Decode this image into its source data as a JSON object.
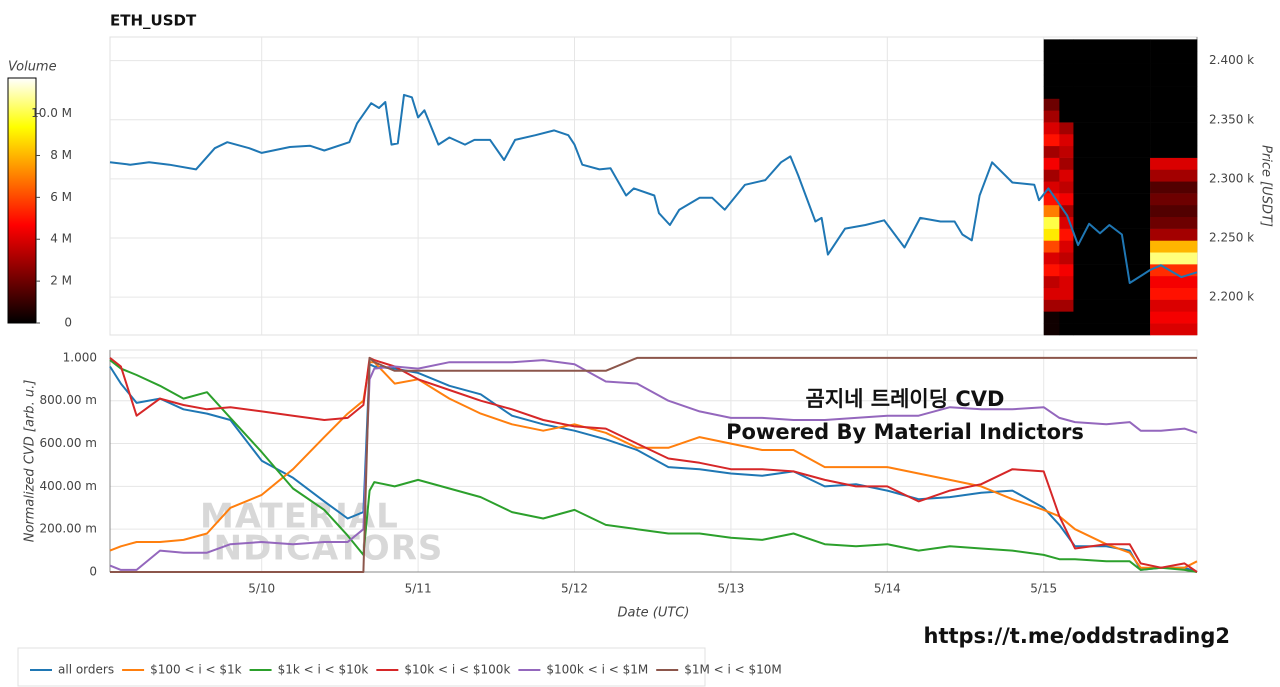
{
  "footer": "https://t.me/oddstrading2",
  "chart_data": [
    {
      "type": "line",
      "title": "ETH_USDT",
      "ylabel": "Price [USDT]",
      "y_axis_side": "right",
      "color": "#1f77b4",
      "grid": true,
      "xlim": [
        9.03,
        15.98
      ],
      "xticks": [
        10,
        11,
        12,
        13,
        14,
        15
      ],
      "ylim": [
        2168,
        2420
      ],
      "yticks": [
        {
          "value": 2200,
          "label": "2.200 k"
        },
        {
          "value": 2250,
          "label": "2.250 k"
        },
        {
          "value": 2300,
          "label": "2.300 k"
        },
        {
          "value": 2350,
          "label": "2.350 k"
        },
        {
          "value": 2400,
          "label": "2.400 k"
        }
      ],
      "x": [
        9.03,
        9.16,
        9.28,
        9.41,
        9.58,
        9.7,
        9.78,
        9.92,
        10.0,
        10.18,
        10.31,
        10.4,
        10.56,
        10.61,
        10.7,
        10.75,
        10.79,
        10.83,
        10.87,
        10.91,
        10.96,
        11.0,
        11.04,
        11.13,
        11.2,
        11.3,
        11.36,
        11.46,
        11.55,
        11.62,
        11.75,
        11.87,
        11.96,
        12.0,
        12.05,
        12.16,
        12.23,
        12.33,
        12.38,
        12.51,
        12.54,
        12.61,
        12.67,
        12.8,
        12.88,
        12.96,
        13.09,
        13.22,
        13.32,
        13.38,
        13.43,
        13.54,
        13.58,
        13.62,
        13.73,
        13.86,
        13.98,
        14.11,
        14.21,
        14.34,
        14.43,
        14.48,
        14.54,
        14.59,
        14.67,
        14.8,
        14.94,
        14.97,
        15.03,
        15.15,
        15.22,
        15.29,
        15.36,
        15.42,
        15.5,
        15.55,
        15.68,
        15.75,
        15.88,
        15.98
      ],
      "values": [
        2314,
        2312,
        2314,
        2312,
        2308,
        2326,
        2331,
        2326,
        2322,
        2327,
        2328,
        2324,
        2331,
        2347,
        2364,
        2360,
        2365,
        2329,
        2330,
        2371,
        2369,
        2352,
        2358,
        2329,
        2335,
        2329,
        2333,
        2333,
        2316,
        2333,
        2337,
        2341,
        2337,
        2329,
        2312,
        2308,
        2309,
        2286,
        2292,
        2286,
        2271,
        2261,
        2274,
        2284,
        2284,
        2274,
        2295,
        2299,
        2314,
        2319,
        2303,
        2264,
        2267,
        2236,
        2258,
        2261,
        2265,
        2242,
        2267,
        2264,
        2264,
        2253,
        2248,
        2286,
        2314,
        2297,
        2295,
        2282,
        2292,
        2269,
        2244,
        2262,
        2254,
        2261,
        2253,
        2212,
        2223,
        2227,
        2217,
        2221
      ],
      "heatmap": {
        "x_edges": [
          15.0,
          15.1,
          15.19,
          15.68,
          15.98
        ],
        "y_edges": [
          2168,
          2178,
          2188,
          2198,
          2208,
          2218,
          2228,
          2238,
          2248,
          2258,
          2268,
          2278,
          2288,
          2298,
          2308,
          2318,
          2328,
          2338,
          2348,
          2358,
          2368,
          2378,
          2388,
          2398,
          2408,
          2418
        ],
        "values": [
          [
            300000,
            300000,
            3000000,
            4000000,
            3500000,
            5000000,
            4000000,
            6000000,
            9000000,
            10000000,
            7000000,
            5000000,
            4000000,
            3000000,
            4500000,
            3000000,
            5000000,
            4000000,
            3000000,
            2000000,
            0,
            0,
            0,
            0,
            0
          ],
          [
            0,
            0,
            3000000,
            4000000,
            4000000,
            4500000,
            3500000,
            4000000,
            5000000,
            4000000,
            3000000,
            4500000,
            3500000,
            4000000,
            3000000,
            3500000,
            4000000,
            3000000,
            0,
            0,
            0,
            0,
            0,
            0,
            0
          ],
          [
            0,
            0,
            0,
            0,
            0,
            0,
            0,
            0,
            0,
            0,
            0,
            0,
            0,
            0,
            0,
            0,
            0,
            0,
            0,
            0,
            0,
            0,
            0,
            0,
            0
          ],
          [
            4000000,
            4500000,
            4000000,
            5000000,
            4500000,
            5500000,
            10500000,
            8000000,
            3000000,
            2000000,
            1500000,
            2000000,
            1500000,
            3000000,
            4000000,
            0,
            0,
            0,
            0,
            0,
            0,
            0,
            0,
            0,
            0
          ]
        ]
      },
      "colorbar": {
        "label": "Volume",
        "lim": [
          0,
          11700000
        ],
        "ticks": [
          0,
          {
            "value": 2000000,
            "label": "2 M"
          },
          {
            "value": 4000000,
            "label": "4 M"
          },
          {
            "value": 6000000,
            "label": "6 M"
          },
          {
            "value": 8000000,
            "label": "8 M"
          },
          {
            "value": 10000000,
            "label": "10.0 M"
          }
        ]
      }
    },
    {
      "type": "line",
      "xlabel": "Date (UTC)",
      "ylabel": "Normalized CVD [arb. u.]",
      "grid": true,
      "legend": "bottom",
      "annotations": [
        "곰지네 트레이딩 CVD",
        "Powered By Material Indictors"
      ],
      "watermark": [
        "MATERIAL",
        "INDICATORS"
      ],
      "xlim": [
        9.03,
        15.98
      ],
      "xticks": [
        {
          "value": 10,
          "label": "5/10"
        },
        {
          "value": 11,
          "label": "5/11"
        },
        {
          "value": 12,
          "label": "5/12"
        },
        {
          "value": 13,
          "label": "5/13"
        },
        {
          "value": 14,
          "label": "5/14"
        },
        {
          "value": 15,
          "label": "5/15"
        }
      ],
      "ylim": [
        0,
        1.037
      ],
      "yticks": [
        0,
        {
          "value": 0.2,
          "label": "200.00 m"
        },
        {
          "value": 0.4,
          "label": "400.00 m"
        },
        {
          "value": 0.6,
          "label": "600.00 m"
        },
        {
          "value": 0.8,
          "label": "800.00 m"
        },
        {
          "value": 1,
          "label": "1.000"
        }
      ],
      "x": [
        9.03,
        9.1,
        9.2,
        9.35,
        9.5,
        9.65,
        9.8,
        10.0,
        10.2,
        10.4,
        10.55,
        10.65,
        10.69,
        10.72,
        10.85,
        11.0,
        11.2,
        11.4,
        11.6,
        11.8,
        12.0,
        12.2,
        12.4,
        12.6,
        12.8,
        13.0,
        13.2,
        13.4,
        13.6,
        13.8,
        14.0,
        14.2,
        14.4,
        14.6,
        14.8,
        15.0,
        15.1,
        15.2,
        15.4,
        15.55,
        15.62,
        15.75,
        15.9,
        15.98
      ],
      "series": [
        {
          "name": "all orders",
          "color": "#1f77b4",
          "values": [
            0.96,
            0.88,
            0.79,
            0.81,
            0.76,
            0.74,
            0.71,
            0.52,
            0.44,
            0.33,
            0.25,
            0.28,
            0.97,
            0.96,
            0.95,
            0.93,
            0.87,
            0.83,
            0.73,
            0.69,
            0.66,
            0.62,
            0.57,
            0.49,
            0.48,
            0.46,
            0.45,
            0.47,
            0.4,
            0.41,
            0.38,
            0.34,
            0.35,
            0.37,
            0.38,
            0.3,
            0.22,
            0.12,
            0.12,
            0.1,
            0.01,
            0.02,
            0.02,
            0.0
          ]
        },
        {
          "name": "$100 < i < $1k",
          "color": "#ff7f0e",
          "values": [
            0.1,
            0.12,
            0.14,
            0.14,
            0.15,
            0.18,
            0.3,
            0.36,
            0.48,
            0.63,
            0.74,
            0.8,
            0.98,
            0.98,
            0.88,
            0.9,
            0.81,
            0.74,
            0.69,
            0.66,
            0.69,
            0.65,
            0.58,
            0.58,
            0.63,
            0.6,
            0.57,
            0.57,
            0.49,
            0.49,
            0.49,
            0.46,
            0.43,
            0.4,
            0.34,
            0.29,
            0.26,
            0.2,
            0.13,
            0.09,
            0.02,
            0.02,
            0.02,
            0.05
          ]
        },
        {
          "name": "$1k < i < $10k",
          "color": "#2ca02c",
          "values": [
            0.99,
            0.95,
            0.92,
            0.87,
            0.81,
            0.84,
            0.72,
            0.56,
            0.39,
            0.29,
            0.17,
            0.08,
            0.38,
            0.42,
            0.4,
            0.43,
            0.39,
            0.35,
            0.28,
            0.25,
            0.29,
            0.22,
            0.2,
            0.18,
            0.18,
            0.16,
            0.15,
            0.18,
            0.13,
            0.12,
            0.13,
            0.1,
            0.12,
            0.11,
            0.1,
            0.08,
            0.06,
            0.06,
            0.05,
            0.05,
            0.01,
            0.02,
            0.01,
            0.0
          ]
        },
        {
          "name": "$10k < i < $100k",
          "color": "#d62728",
          "values": [
            1.0,
            0.96,
            0.73,
            0.81,
            0.78,
            0.76,
            0.77,
            0.75,
            0.73,
            0.71,
            0.72,
            0.78,
            1.0,
            0.99,
            0.96,
            0.9,
            0.85,
            0.8,
            0.76,
            0.71,
            0.68,
            0.67,
            0.6,
            0.53,
            0.51,
            0.48,
            0.48,
            0.47,
            0.43,
            0.4,
            0.4,
            0.33,
            0.38,
            0.41,
            0.48,
            0.47,
            0.26,
            0.11,
            0.13,
            0.13,
            0.04,
            0.02,
            0.04,
            0.0
          ]
        },
        {
          "name": "$100k < i < $1M",
          "color": "#9467bd",
          "values": [
            0.03,
            0.01,
            0.01,
            0.1,
            0.09,
            0.09,
            0.13,
            0.14,
            0.13,
            0.14,
            0.14,
            0.2,
            0.9,
            0.95,
            0.96,
            0.95,
            0.98,
            0.98,
            0.98,
            0.99,
            0.97,
            0.89,
            0.88,
            0.8,
            0.75,
            0.72,
            0.72,
            0.71,
            0.71,
            0.72,
            0.73,
            0.73,
            0.77,
            0.76,
            0.76,
            0.77,
            0.72,
            0.7,
            0.69,
            0.7,
            0.66,
            0.66,
            0.67,
            0.65
          ]
        },
        {
          "name": "$1M < i < $10M",
          "color": "#8c564b",
          "values": [
            0,
            0,
            0,
            0,
            0,
            0,
            0,
            0,
            0,
            0,
            0,
            0,
            1.0,
            0.98,
            0.94,
            0.94,
            0.94,
            0.94,
            0.94,
            0.94,
            0.94,
            0.94,
            1.0,
            1.0,
            1.0,
            1.0,
            1.0,
            1.0,
            1.0,
            1.0,
            1.0,
            1.0,
            1.0,
            1.0,
            1.0,
            1.0,
            1.0,
            1.0,
            1.0,
            1.0,
            1.0,
            1.0,
            1.0,
            1.0
          ]
        }
      ]
    }
  ]
}
